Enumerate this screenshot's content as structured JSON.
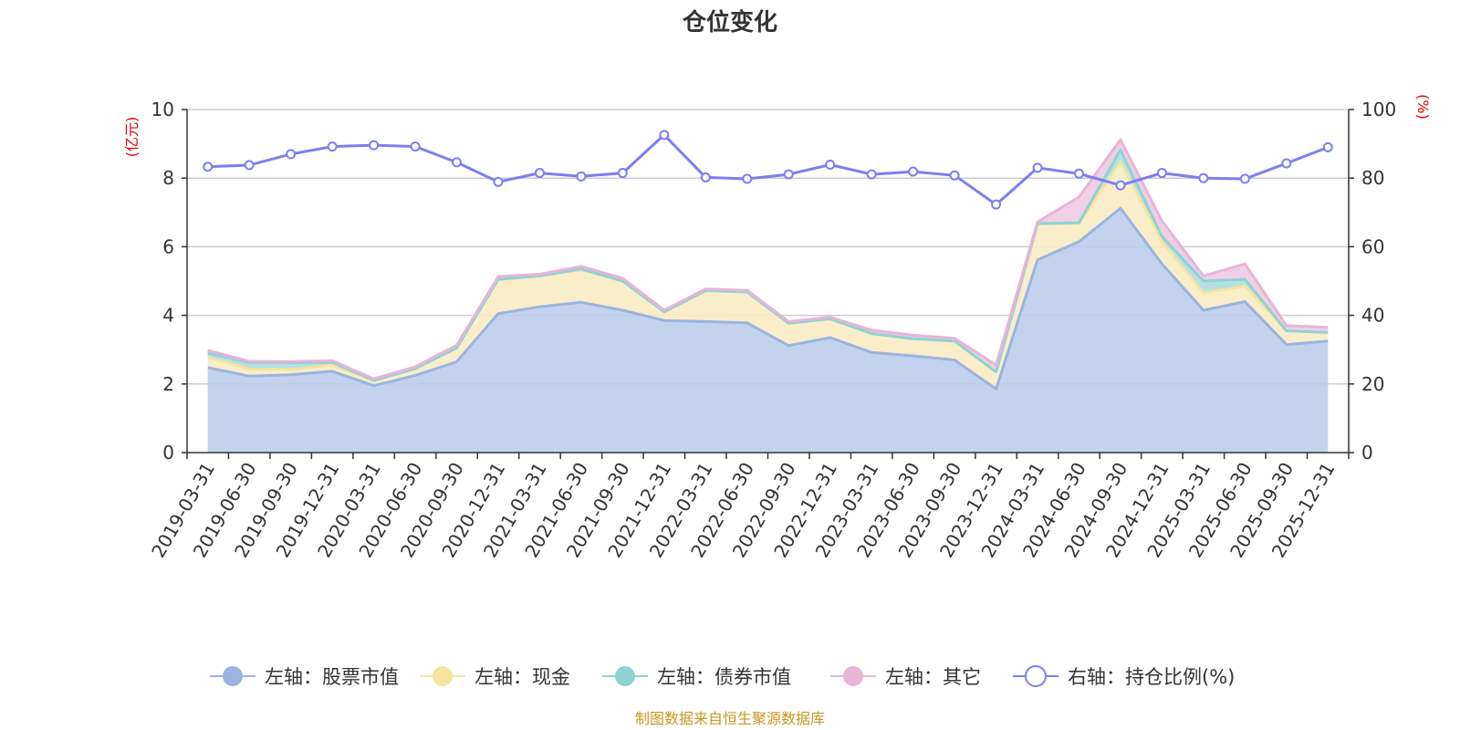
{
  "chart_data": {
    "type": "area",
    "title": "仓位变化",
    "source": "制图数据来自恒生聚源数据库",
    "left_unit": "(亿元)",
    "right_unit": "(%)",
    "ylim_left": [
      0,
      10
    ],
    "ylim_right": [
      0,
      100
    ],
    "yticks_left": [
      "0",
      "2",
      "4",
      "6",
      "8",
      "10"
    ],
    "yticks_right": [
      "0",
      "20",
      "40",
      "60",
      "80",
      "100"
    ],
    "categories": [
      "2019-03-31",
      "2019-06-30",
      "2019-09-30",
      "2019-12-31",
      "2020-03-31",
      "2020-06-30",
      "2020-09-30",
      "2020-12-31",
      "2021-03-31",
      "2021-06-30",
      "2021-09-30",
      "2021-12-31",
      "2022-03-31",
      "2022-06-30",
      "2022-09-30",
      "2022-12-31",
      "2023-03-31",
      "2023-06-30",
      "2023-09-30",
      "2023-12-31",
      "2024-03-31",
      "2024-06-30",
      "2024-09-30",
      "2024-12-31",
      "2025-03-31",
      "2025-06-30",
      "2025-09-30",
      "2025-12-31"
    ],
    "series": [
      {
        "name": "左轴：股票市值",
        "axis": "left",
        "stack": true,
        "color": "#9ab4e0",
        "fill": "#b8cbea",
        "values": [
          2.48,
          2.23,
          2.27,
          2.37,
          1.95,
          2.25,
          2.65,
          4.05,
          4.25,
          4.38,
          4.15,
          3.85,
          3.82,
          3.78,
          3.12,
          3.35,
          2.92,
          2.82,
          2.7,
          1.85,
          5.62,
          6.15,
          7.12,
          5.5,
          4.15,
          4.4,
          3.15,
          3.25
        ]
      },
      {
        "name": "左轴：现金",
        "axis": "left",
        "stack": true,
        "color": "#f5e4a0",
        "fill": "#f8ebbf",
        "values": [
          0.3,
          0.2,
          0.15,
          0.18,
          0.15,
          0.2,
          0.4,
          1.0,
          0.9,
          0.95,
          0.85,
          0.25,
          0.9,
          0.9,
          0.65,
          0.55,
          0.55,
          0.5,
          0.55,
          0.5,
          1.05,
          0.55,
          1.35,
          0.65,
          0.5,
          0.45,
          0.4,
          0.25
        ]
      },
      {
        "name": "左轴：债券市值",
        "axis": "left",
        "stack": true,
        "color": "#8ed3d3",
        "fill": "#a8dcdc",
        "values": [
          0.12,
          0.2,
          0.2,
          0.08,
          0.0,
          0.0,
          0.0,
          0.0,
          0.0,
          0.02,
          0.0,
          0.0,
          0.0,
          0.0,
          0.0,
          0.0,
          0.0,
          0.0,
          0.0,
          0.0,
          0.0,
          0.0,
          0.35,
          0.15,
          0.35,
          0.2,
          0.0,
          0.0
        ]
      },
      {
        "name": "左轴：其它",
        "axis": "left",
        "stack": true,
        "color": "#e8b4d8",
        "fill": "#ecc8e0",
        "values": [
          0.08,
          0.03,
          0.03,
          0.05,
          0.05,
          0.05,
          0.08,
          0.08,
          0.05,
          0.08,
          0.08,
          0.05,
          0.05,
          0.05,
          0.05,
          0.05,
          0.1,
          0.1,
          0.08,
          0.2,
          0.05,
          0.75,
          0.3,
          0.45,
          0.15,
          0.45,
          0.15,
          0.15
        ]
      },
      {
        "name": "右轴：持仓比例(%)",
        "axis": "right",
        "type": "line",
        "color": "#7b7ff0",
        "values": [
          83.3,
          83.8,
          87.0,
          89.2,
          89.6,
          89.2,
          84.6,
          78.9,
          81.5,
          80.5,
          81.5,
          92.6,
          80.2,
          79.8,
          81.1,
          83.9,
          81.1,
          81.9,
          80.8,
          72.3,
          83.0,
          81.3,
          77.9,
          81.5,
          80.0,
          79.8,
          84.3,
          89.0
        ]
      }
    ]
  }
}
